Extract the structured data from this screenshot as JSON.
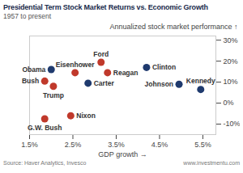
{
  "chart_data": {
    "type": "scatter",
    "title": "Presidential Term Stock Market Returns vs. Economic Growth",
    "subtitle": "1957 to present",
    "x_label": "GDP growth",
    "y_label": "Annualized stock market performance",
    "labels": [
      "Obama",
      "Bush",
      "Trump",
      "G.W. Bush",
      "Eisenhower",
      "Nixon",
      "Ford",
      "Carter",
      "Reagan",
      "Clinton",
      "Johnson",
      "Kennedy"
    ],
    "x": [
      2.0,
      1.85,
      2.05,
      1.85,
      2.55,
      2.45,
      3.15,
      2.85,
      3.3,
      4.2,
      4.95,
      5.45
    ],
    "values": [
      16,
      10.5,
      8,
      -7.5,
      14.5,
      -6,
      19.5,
      9.5,
      14.5,
      17,
      9,
      6.5
    ],
    "colors": [
      "#1f3a6e",
      "#c0392b",
      "#c0392b",
      "#c0392b",
      "#c0392b",
      "#c0392b",
      "#c0392b",
      "#1f3a6e",
      "#c0392b",
      "#1f3a6e",
      "#1f3a6e",
      "#1f3a6e"
    ],
    "xlim": [
      1.5,
      5.8
    ],
    "ylim": [
      -15,
      32
    ],
    "xticks": [
      {
        "value": 1.5,
        "label": "1.5%"
      },
      {
        "value": 2.5,
        "label": "2.5%"
      },
      {
        "value": 3.5,
        "label": "3.5%"
      },
      {
        "value": 4.5,
        "label": "4.5%"
      },
      {
        "value": 5.5,
        "label": "5.5%"
      }
    ],
    "yticks": [
      {
        "value": -10,
        "label": "-10%"
      },
      {
        "value": 0,
        "label": "0%"
      },
      {
        "value": 10,
        "label": "10%"
      },
      {
        "value": 20,
        "label": "20%"
      },
      {
        "value": 30,
        "label": "30%"
      }
    ],
    "grid": false,
    "data_labels": false,
    "source": "Source: Haver Analytics, Invesco",
    "website": "www.investmentu.com"
  }
}
